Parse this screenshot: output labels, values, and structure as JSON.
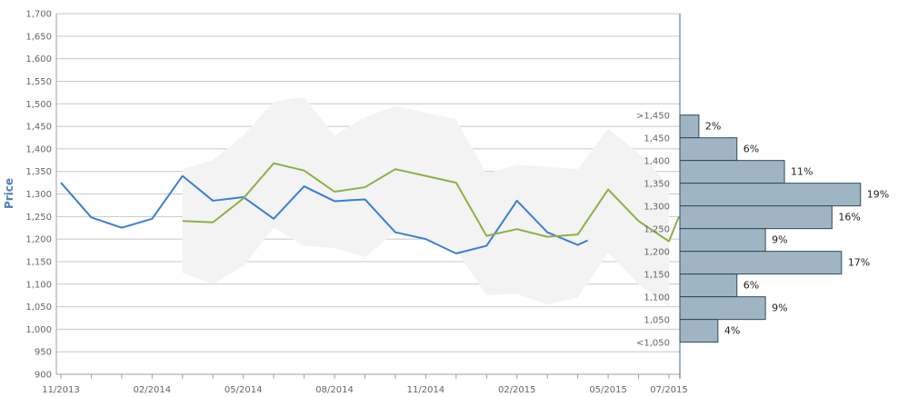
{
  "chart_data": {
    "type": "line",
    "title": "",
    "xlabel": "",
    "ylabel": "Price",
    "ylim": [
      900,
      1700
    ],
    "y_ticks": [
      "900",
      "950",
      "1,000",
      "1,050",
      "1,100",
      "1,150",
      "1,200",
      "1,250",
      "1,300",
      "1,350",
      "1,400",
      "1,450",
      "1,500",
      "1,550",
      "1,600",
      "1,650",
      "1,700"
    ],
    "x_ticks": [
      "11/2013",
      "02/2014",
      "05/2014",
      "08/2014",
      "11/2014",
      "02/2015",
      "05/2015",
      "07/2015"
    ],
    "grid": true,
    "series": [
      {
        "color": "#3a7fd5",
        "points": [
          [
            "11/2013",
            1325
          ],
          [
            "12/2013",
            1248
          ],
          [
            "01/2014",
            1225
          ],
          [
            "02/2014",
            1245
          ],
          [
            "03/2014",
            1340
          ],
          [
            "04/2014",
            1285
          ],
          [
            "05/2014",
            1293
          ],
          [
            "06/2014",
            1245
          ],
          [
            "07/2014",
            1317
          ],
          [
            "08/2014",
            1284
          ],
          [
            "09/2014",
            1288
          ],
          [
            "10/2014",
            1215
          ],
          [
            "11/2014",
            1200
          ],
          [
            "12/2014",
            1168
          ],
          [
            "01/2015",
            1185
          ],
          [
            "02/2015",
            1285
          ],
          [
            "03/2015",
            1215
          ],
          [
            "04/2015",
            1187
          ],
          [
            "04/2015b",
            1197
          ]
        ]
      },
      {
        "color": "#8db04a",
        "points": [
          [
            "03/2014",
            1240
          ],
          [
            "04/2014",
            1237
          ],
          [
            "05/2014",
            1290
          ],
          [
            "06/2014",
            1368
          ],
          [
            "07/2014",
            1352
          ],
          [
            "08/2014",
            1305
          ],
          [
            "09/2014",
            1315
          ],
          [
            "10/2014",
            1355
          ],
          [
            "11/2014",
            1340
          ],
          [
            "12/2014",
            1325
          ],
          [
            "01/2015",
            1207
          ],
          [
            "02/2015",
            1222
          ],
          [
            "03/2015",
            1205
          ],
          [
            "04/2015",
            1210
          ],
          [
            "05/2015",
            1310
          ],
          [
            "06/2015",
            1240
          ],
          [
            "07/2015",
            1195
          ],
          [
            "07/2015b",
            1250
          ]
        ]
      }
    ],
    "band": {
      "color": "#f3f3f3",
      "upper": [
        [
          "03/2014",
          1355
        ],
        [
          "04/2014",
          1375
        ],
        [
          "05/2014",
          1430
        ],
        [
          "06/2014",
          1505
        ],
        [
          "07/2014",
          1515
        ],
        [
          "08/2014",
          1430
        ],
        [
          "09/2014",
          1470
        ],
        [
          "10/2014",
          1495
        ],
        [
          "11/2014",
          1480
        ],
        [
          "12/2014",
          1465
        ],
        [
          "01/2015",
          1345
        ],
        [
          "02/2015",
          1365
        ],
        [
          "03/2015",
          1360
        ],
        [
          "04/2015",
          1355
        ],
        [
          "05/2015",
          1445
        ],
        [
          "06/2015",
          1390
        ],
        [
          "07/2015",
          1320
        ]
      ],
      "lower": [
        [
          "03/2014",
          1125
        ],
        [
          "04/2014",
          1100
        ],
        [
          "05/2014",
          1140
        ],
        [
          "06/2014",
          1225
        ],
        [
          "07/2014",
          1185
        ],
        [
          "08/2014",
          1180
        ],
        [
          "09/2014",
          1160
        ],
        [
          "10/2014",
          1215
        ],
        [
          "11/2014",
          1200
        ],
        [
          "12/2014",
          1175
        ],
        [
          "01/2015",
          1075
        ],
        [
          "02/2015",
          1078
        ],
        [
          "03/2015",
          1055
        ],
        [
          "04/2015",
          1070
        ],
        [
          "05/2015",
          1170
        ],
        [
          "06/2015",
          1100
        ],
        [
          "07/2015",
          1050
        ]
      ]
    },
    "histogram": {
      "color": "#9fb5c4",
      "border": "#2f4a5e",
      "bins": [
        {
          "label": ">1,450",
          "pct": "2%",
          "value": 2
        },
        {
          "label": "1,450",
          "pct": "6%",
          "value": 6
        },
        {
          "label": "1,400",
          "pct": "11%",
          "value": 11
        },
        {
          "label": "1,350",
          "pct": "19%",
          "value": 19
        },
        {
          "label": "1,300",
          "pct": "16%",
          "value": 16
        },
        {
          "label": "1,250",
          "pct": "9%",
          "value": 9
        },
        {
          "label": "1,200",
          "pct": "17%",
          "value": 17
        },
        {
          "label": "1,150",
          "pct": "6%",
          "value": 6
        },
        {
          "label": "1,100",
          "pct": "9%",
          "value": 9
        },
        {
          "label": "1,050",
          "pct": "4%",
          "value": 4
        },
        {
          "label": "<1,050",
          "pct": "",
          "value": 0
        }
      ]
    }
  }
}
